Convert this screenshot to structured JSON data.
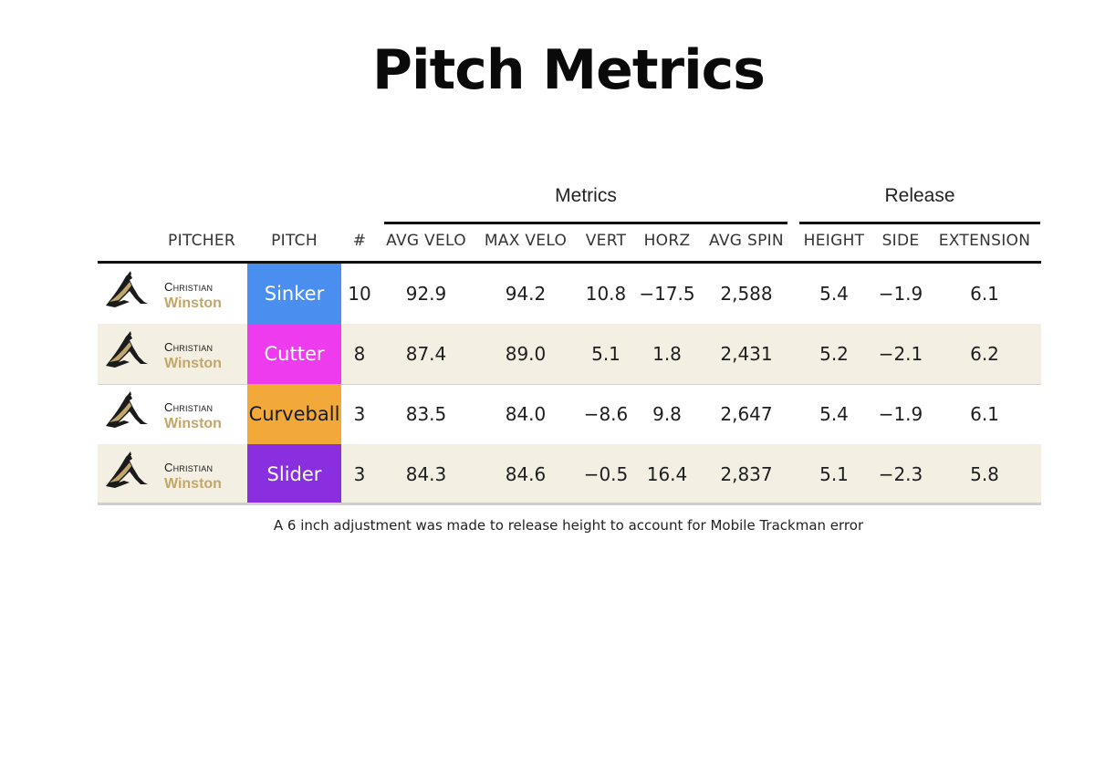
{
  "title": "Pitch Metrics",
  "groups": {
    "metrics": "Metrics",
    "release": "Release"
  },
  "columns": [
    "PITCHER",
    "PITCH",
    "#",
    "AVG VELO",
    "MAX VELO",
    "VERT",
    "HORZ",
    "AVG SPIN",
    "HEIGHT",
    "SIDE",
    "EXTENSION"
  ],
  "footnote": "A 6 inch adjustment was made to release height to account for Mobile Trackman error",
  "pitcher": {
    "first": "Christian",
    "last": "Winston",
    "last_color": "#c2a76a"
  },
  "chart_data": {
    "type": "table",
    "title": "Pitch Metrics",
    "columns": [
      "PITCHER",
      "PITCH",
      "#",
      "AVG VELO",
      "MAX VELO",
      "VERT",
      "HORZ",
      "AVG SPIN",
      "HEIGHT",
      "SIDE",
      "EXTENSION"
    ],
    "column_groups": [
      {
        "name": "Metrics",
        "columns": [
          "AVG VELO",
          "MAX VELO",
          "VERT",
          "HORZ",
          "AVG SPIN"
        ]
      },
      {
        "name": "Release",
        "columns": [
          "HEIGHT",
          "SIDE",
          "EXTENSION"
        ]
      }
    ],
    "rows": [
      {
        "pitcher": "Christian Winston",
        "pitch": "Sinker",
        "pitch_color": "#4a8ff0",
        "pitch_text_color": "#ffffff",
        "count": "10",
        "avg_velo": "92.9",
        "max_velo": "94.2",
        "vert": "10.8",
        "horz": "−17.5",
        "avg_spin": "2,588",
        "height": "5.4",
        "side": "−1.9",
        "extension": "6.1"
      },
      {
        "pitcher": "Christian Winston",
        "pitch": "Cutter",
        "pitch_color": "#ee3bee",
        "pitch_text_color": "#ffffff",
        "count": "8",
        "avg_velo": "87.4",
        "max_velo": "89.0",
        "vert": "5.1",
        "horz": "1.8",
        "avg_spin": "2,431",
        "height": "5.2",
        "side": "−2.1",
        "extension": "6.2"
      },
      {
        "pitcher": "Christian Winston",
        "pitch": "Curveball",
        "pitch_color": "#f2a93a",
        "pitch_text_color": "#1a1a1a",
        "count": "3",
        "avg_velo": "83.5",
        "max_velo": "84.0",
        "vert": "−8.6",
        "horz": "9.8",
        "avg_spin": "2,647",
        "height": "5.4",
        "side": "−1.9",
        "extension": "6.1"
      },
      {
        "pitcher": "Christian Winston",
        "pitch": "Slider",
        "pitch_color": "#8a2fe0",
        "pitch_text_color": "#ffffff",
        "count": "3",
        "avg_velo": "84.3",
        "max_velo": "84.6",
        "vert": "−0.5",
        "horz": "16.4",
        "avg_spin": "2,837",
        "height": "5.1",
        "side": "−2.3",
        "extension": "5.8"
      }
    ]
  }
}
